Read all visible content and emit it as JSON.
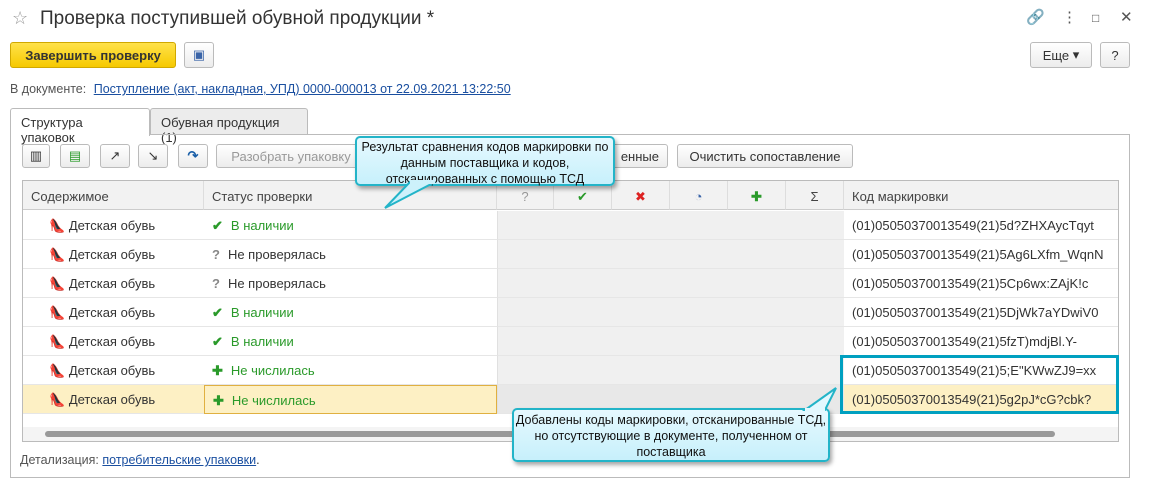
{
  "window": {
    "title": "Проверка поступившей обувной продукции *"
  },
  "toolbar": {
    "finish": "Завершить проверку",
    "more": "Еще",
    "help": "?"
  },
  "document": {
    "label": "В документе:",
    "link": "Поступление (акт, накладная, УПД) 0000-000013 от 22.09.2021 13:22:50"
  },
  "tabs": [
    {
      "label": "Структура упаковок"
    },
    {
      "label": "Обувная продукция (1)"
    }
  ],
  "actions": {
    "unpack": "Разобрать упаковку",
    "partial": "енные",
    "clear": "Очистить сопоставление"
  },
  "table": {
    "headers": [
      "Содержимое",
      "Статус проверки",
      "?",
      "Код маркировки"
    ],
    "rows": [
      {
        "content": "Детская обувь",
        "status": "В наличии",
        "status_icon": "check",
        "code": "(01)05050370013549(21)5d?ZHXAycTqyt"
      },
      {
        "content": "Детская обувь",
        "status": "Не проверялась",
        "status_icon": "question",
        "code": "(01)05050370013549(21)5Ag6LXfm_WqnN"
      },
      {
        "content": "Детская обувь",
        "status": "Не проверялась",
        "status_icon": "question",
        "code": "(01)05050370013549(21)5Cp6wx:ZAjK!c"
      },
      {
        "content": "Детская обувь",
        "status": "В наличии",
        "status_icon": "check",
        "code": "(01)05050370013549(21)5DjWk7aYDwiV0"
      },
      {
        "content": "Детская обувь",
        "status": "В наличии",
        "status_icon": "check",
        "code": "(01)05050370013549(21)5fzT)mdjBl.Y-"
      },
      {
        "content": "Детская обувь",
        "status": "Не числилась",
        "status_icon": "plus",
        "code": "(01)05050370013549(21)5;E\"KWwZJ9=xx"
      },
      {
        "content": "Детская обувь",
        "status": "Не числилась",
        "status_icon": "plus",
        "code": "(01)05050370013549(21)5g2pJ*cG?cbk?",
        "selected": true
      }
    ]
  },
  "footer": {
    "label": "Детализация:",
    "link": "потребительские упаковки",
    "dot": "."
  },
  "callouts": {
    "top": "Результат сравнения кодов маркировки по данным поставщика и кодов, отсканированных с помощью ТСД",
    "bottom": "Добавлены коды маркировки, отсканированные ТСД, но отсутствующие в документе, полученном от поставщика"
  },
  "colors": {
    "accent": "#f6c900",
    "callout": "#23b4c8",
    "selected_row": "#fdf0c4",
    "green": "#2a9a2a"
  }
}
